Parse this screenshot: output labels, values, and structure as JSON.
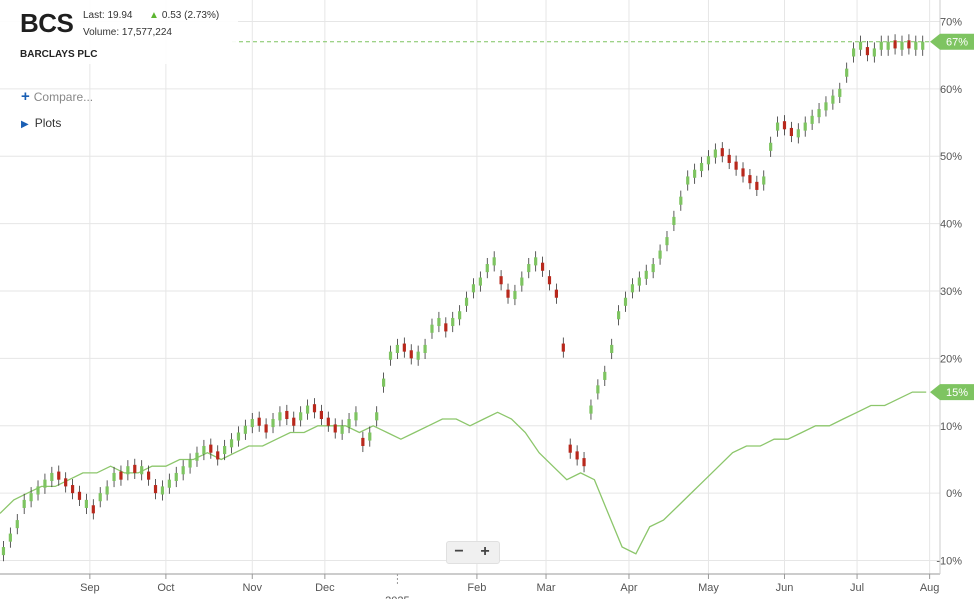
{
  "quote": {
    "symbol": "BCS",
    "last_label": "Last: 19.94",
    "change": "0.53 (2.73%)",
    "volume": "Volume: 17,577,224",
    "company": "BARCLAYS PLC"
  },
  "controls": {
    "compare_label": "Compare...",
    "plots_label": "Plots",
    "zoom_out": "−",
    "zoom_in": "+"
  },
  "colors": {
    "up": "#7ec461",
    "down": "#b8281c",
    "benchmark": "#8cc66b",
    "grid": "#e6e6e6",
    "badge": "#7ec461"
  },
  "icons": {
    "change": "up-arrow-icon",
    "compare": "plus-icon",
    "plots": "triangle-right-icon"
  },
  "chart_data": {
    "type": "line",
    "title": "",
    "xlabel": "",
    "ylabel": "",
    "ylim": [
      -12,
      72
    ],
    "y_ticks": [
      70,
      60,
      50,
      40,
      30,
      20,
      10,
      0,
      -10
    ],
    "y_tick_labels": [
      "70%",
      "60%",
      "50%",
      "40%",
      "30%",
      "20%",
      "10%",
      "0%",
      "-10%"
    ],
    "x_tick_labels": [
      "Sep",
      "Oct",
      "Nov",
      "Dec",
      "Feb",
      "Mar",
      "Apr",
      "May",
      "Jun",
      "Jul",
      "Aug"
    ],
    "x_tick_index": [
      26,
      48,
      73,
      94,
      138,
      158,
      182,
      205,
      227,
      248,
      269
    ],
    "x_extra_label": "2025",
    "x_extra_index": 115,
    "last_values": {
      "price": "67%",
      "benchmark": "15%"
    },
    "series": [
      {
        "style": "candlestick",
        "x": [
          1,
          3,
          5,
          7,
          9,
          11,
          13,
          15,
          17,
          19,
          21,
          23,
          25,
          27,
          29,
          31,
          33,
          35,
          37,
          39,
          41,
          43,
          45,
          47,
          49,
          51,
          53,
          55,
          57,
          59,
          61,
          63,
          65,
          67,
          69,
          71,
          73,
          75,
          77,
          79,
          81,
          83,
          85,
          87,
          89,
          91,
          93,
          95,
          97,
          99,
          101,
          103,
          105,
          107,
          109,
          111,
          113,
          115,
          117,
          119,
          121,
          123,
          125,
          127,
          129,
          131,
          133,
          135,
          137,
          139,
          141,
          143,
          145,
          147,
          149,
          151,
          153,
          155,
          157,
          159,
          161,
          163,
          165,
          167,
          169,
          171,
          173,
          175,
          177,
          179,
          181,
          183,
          185,
          187,
          189,
          191,
          193,
          195,
          197,
          199,
          201,
          203,
          205,
          207,
          209,
          211,
          213,
          215,
          217,
          219,
          221,
          223,
          225,
          227,
          229,
          231,
          233,
          235,
          237,
          239,
          241,
          243,
          245,
          247,
          249,
          251,
          253,
          255,
          257,
          259,
          261,
          263,
          265,
          267
        ],
        "values": [
          -8,
          -6,
          -4,
          -1,
          0,
          1,
          2,
          3,
          2,
          1,
          0,
          -1,
          -1,
          -3,
          0,
          1,
          3,
          2,
          4,
          3,
          4,
          2,
          0,
          1,
          2,
          3,
          4,
          5,
          6,
          7,
          6,
          5,
          7,
          8,
          9,
          10,
          11,
          10,
          9,
          11,
          12,
          11,
          10,
          12,
          13,
          12,
          11,
          10,
          9,
          10,
          11,
          12,
          7,
          9,
          12,
          17,
          21,
          22,
          21,
          20,
          21,
          22,
          25,
          26,
          24,
          26,
          27,
          29,
          31,
          32,
          34,
          35,
          31,
          29,
          30,
          32,
          34,
          35,
          33,
          31,
          29,
          21,
          6,
          5,
          4,
          13,
          16,
          18,
          22,
          27,
          29,
          31,
          32,
          33,
          34,
          36,
          38,
          41,
          44,
          47,
          48,
          49,
          50,
          51,
          50,
          49,
          48,
          47,
          46,
          45,
          47,
          52,
          55,
          54,
          53,
          54,
          55,
          56,
          57,
          58,
          59,
          60,
          63,
          66,
          67,
          65,
          66,
          67,
          67,
          66,
          67,
          66,
          67,
          67
        ]
      },
      {
        "style": "line",
        "x": [
          0,
          4,
          8,
          12,
          16,
          20,
          24,
          28,
          32,
          36,
          40,
          44,
          48,
          52,
          56,
          60,
          64,
          68,
          72,
          76,
          80,
          84,
          88,
          92,
          96,
          100,
          104,
          108,
          112,
          116,
          120,
          124,
          128,
          132,
          136,
          140,
          144,
          148,
          152,
          156,
          160,
          164,
          168,
          172,
          176,
          180,
          184,
          188,
          192,
          196,
          200,
          204,
          208,
          212,
          216,
          220,
          224,
          228,
          232,
          236,
          240,
          244,
          248,
          252,
          256,
          260,
          264,
          268
        ],
        "values": [
          -3,
          -1,
          0,
          1,
          1,
          2,
          3,
          3,
          4,
          3,
          3,
          4,
          4,
          5,
          5,
          6,
          5,
          6,
          7,
          7,
          8,
          9,
          9,
          10,
          10,
          10,
          9,
          10,
          9,
          8,
          9,
          10,
          11,
          11,
          10,
          11,
          12,
          11,
          9,
          6,
          4,
          2,
          3,
          2,
          -3,
          -8,
          -9,
          -5,
          -4,
          -2,
          0,
          2,
          4,
          6,
          7,
          7,
          8,
          8,
          9,
          10,
          10,
          11,
          12,
          13,
          13,
          14,
          15,
          15
        ]
      }
    ]
  }
}
